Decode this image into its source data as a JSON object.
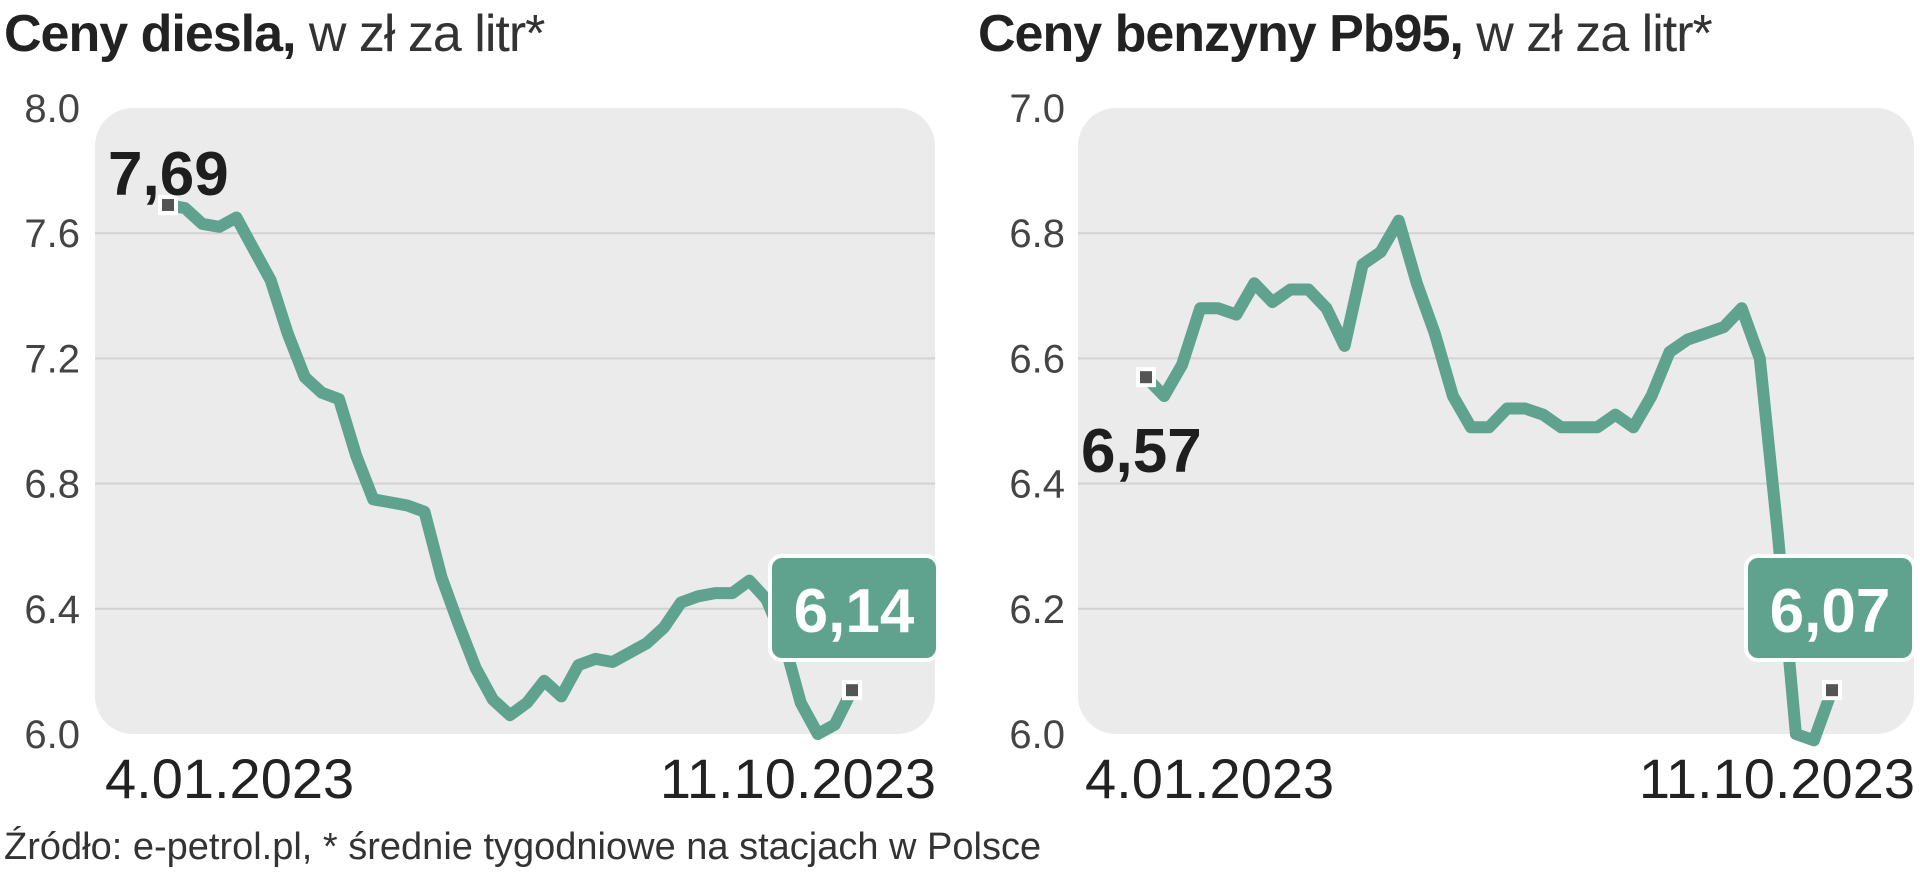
{
  "source_note": "Źródło: e-petrol.pl, * średnie tygodniowe na stacjach w Polsce",
  "colors": {
    "line": "#5fa38e",
    "plot_bg": "#ebebeb",
    "grid": "#d2d2d2",
    "marker": "#555555"
  },
  "chart_data": [
    {
      "type": "line",
      "title": "Ceny diesla,",
      "subtitle": "w zł za litr*",
      "y_ticks": [
        "8.0",
        "7.6",
        "7.2",
        "6.8",
        "6.4",
        "6.0"
      ],
      "ylim": [
        6.0,
        8.0
      ],
      "x_labels": [
        "4.01.2023",
        "11.10.2023"
      ],
      "start_label": "7,69",
      "end_label": "6,14",
      "values": [
        7.69,
        7.68,
        7.63,
        7.62,
        7.65,
        7.55,
        7.45,
        7.28,
        7.14,
        7.09,
        7.07,
        6.89,
        6.75,
        6.74,
        6.73,
        6.71,
        6.5,
        6.35,
        6.21,
        6.11,
        6.06,
        6.1,
        6.17,
        6.12,
        6.22,
        6.24,
        6.23,
        6.26,
        6.29,
        6.34,
        6.42,
        6.44,
        6.45,
        6.45,
        6.49,
        6.43,
        6.3,
        6.1,
        6.0,
        6.03,
        6.14
      ]
    },
    {
      "type": "line",
      "title": "Ceny benzyny Pb95,",
      "subtitle": "w zł za litr*",
      "y_ticks": [
        "7.0",
        "6.8",
        "6.6",
        "6.4",
        "6.2",
        "6.0"
      ],
      "ylim": [
        6.0,
        7.0
      ],
      "x_labels": [
        "4.01.2023",
        "11.10.2023"
      ],
      "start_label": "6,57",
      "end_label": "6,07",
      "values": [
        6.57,
        6.54,
        6.59,
        6.68,
        6.68,
        6.67,
        6.72,
        6.69,
        6.71,
        6.71,
        6.68,
        6.62,
        6.75,
        6.77,
        6.82,
        6.72,
        6.64,
        6.54,
        6.49,
        6.49,
        6.52,
        6.52,
        6.51,
        6.49,
        6.49,
        6.49,
        6.51,
        6.49,
        6.54,
        6.61,
        6.63,
        6.64,
        6.65,
        6.68,
        6.6,
        6.32,
        6.0,
        5.99,
        6.07
      ]
    }
  ]
}
